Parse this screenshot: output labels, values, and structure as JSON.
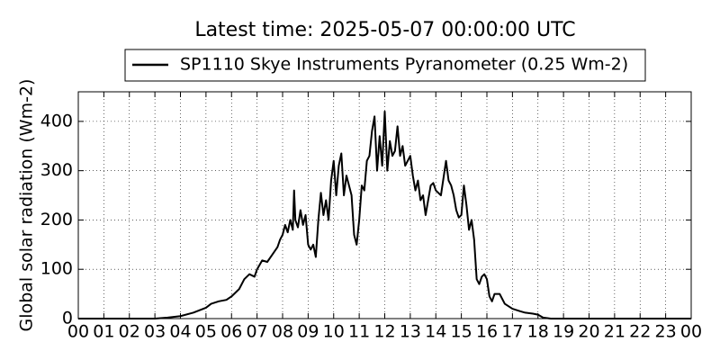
{
  "chart_data": {
    "type": "line",
    "title": "Latest time: 2025-05-07 00:00:00 UTC",
    "y_label": "Global solar radiation (Wm-2)",
    "xlim": [
      0,
      24
    ],
    "ylim": [
      0,
      460
    ],
    "grid": true,
    "legend": "top-center",
    "xticks": [
      {
        "value": 0,
        "label": "00"
      },
      {
        "value": 1,
        "label": "01"
      },
      {
        "value": 2,
        "label": "02"
      },
      {
        "value": 3,
        "label": "03"
      },
      {
        "value": 4,
        "label": "04"
      },
      {
        "value": 5,
        "label": "05"
      },
      {
        "value": 6,
        "label": "06"
      },
      {
        "value": 7,
        "label": "07"
      },
      {
        "value": 8,
        "label": "08"
      },
      {
        "value": 9,
        "label": "09"
      },
      {
        "value": 10,
        "label": "10"
      },
      {
        "value": 11,
        "label": "11"
      },
      {
        "value": 12,
        "label": "12"
      },
      {
        "value": 13,
        "label": "13"
      },
      {
        "value": 14,
        "label": "14"
      },
      {
        "value": 15,
        "label": "15"
      },
      {
        "value": 16,
        "label": "16"
      },
      {
        "value": 17,
        "label": "17"
      },
      {
        "value": 18,
        "label": "18"
      },
      {
        "value": 19,
        "label": "19"
      },
      {
        "value": 20,
        "label": "20"
      },
      {
        "value": 21,
        "label": "21"
      },
      {
        "value": 22,
        "label": "22"
      },
      {
        "value": 23,
        "label": "23"
      },
      {
        "value": 24,
        "label": "00"
      }
    ],
    "yticks": [
      0,
      100,
      200,
      300,
      400
    ],
    "x": [
      0,
      3.0,
      3.5,
      4.0,
      4.5,
      5.0,
      5.2,
      5.5,
      5.8,
      6.0,
      6.3,
      6.5,
      6.7,
      6.9,
      7.0,
      7.2,
      7.4,
      7.6,
      7.8,
      7.9,
      8.0,
      8.1,
      8.2,
      8.3,
      8.4,
      8.45,
      8.5,
      8.6,
      8.7,
      8.8,
      8.9,
      9.0,
      9.1,
      9.2,
      9.3,
      9.4,
      9.5,
      9.6,
      9.7,
      9.8,
      9.9,
      10.0,
      10.1,
      10.2,
      10.3,
      10.4,
      10.5,
      10.7,
      10.8,
      10.9,
      11.0,
      11.1,
      11.2,
      11.3,
      11.4,
      11.5,
      11.6,
      11.7,
      11.8,
      11.9,
      12.0,
      12.1,
      12.2,
      12.3,
      12.4,
      12.5,
      12.6,
      12.7,
      12.8,
      12.9,
      13.0,
      13.1,
      13.2,
      13.3,
      13.4,
      13.5,
      13.6,
      13.8,
      13.9,
      14.0,
      14.2,
      14.4,
      14.5,
      14.6,
      14.7,
      14.8,
      14.9,
      15.0,
      15.1,
      15.2,
      15.3,
      15.4,
      15.5,
      15.6,
      15.7,
      15.8,
      15.9,
      16.0,
      16.1,
      16.2,
      16.3,
      16.5,
      16.7,
      17.0,
      17.3,
      17.5,
      17.8,
      18.0,
      18.2,
      18.5,
      24
    ],
    "series": [
      {
        "name": "SP1110 Skye Instruments Pyranometer (0.25 Wm-2)",
        "color": "#000000",
        "values": [
          0,
          0,
          2,
          5,
          12,
          22,
          30,
          35,
          38,
          45,
          60,
          80,
          90,
          85,
          100,
          118,
          115,
          130,
          145,
          160,
          170,
          190,
          175,
          200,
          180,
          260,
          200,
          185,
          220,
          190,
          210,
          150,
          140,
          150,
          125,
          200,
          255,
          210,
          240,
          200,
          280,
          320,
          250,
          310,
          335,
          250,
          290,
          250,
          170,
          150,
          200,
          270,
          260,
          320,
          330,
          380,
          410,
          300,
          370,
          310,
          420,
          300,
          360,
          330,
          340,
          390,
          330,
          350,
          310,
          320,
          330,
          290,
          260,
          280,
          240,
          250,
          210,
          270,
          275,
          260,
          250,
          320,
          280,
          270,
          250,
          220,
          205,
          210,
          270,
          230,
          180,
          200,
          160,
          80,
          70,
          85,
          90,
          80,
          45,
          35,
          50,
          50,
          30,
          20,
          15,
          12,
          10,
          8,
          2,
          0,
          0
        ]
      }
    ]
  }
}
